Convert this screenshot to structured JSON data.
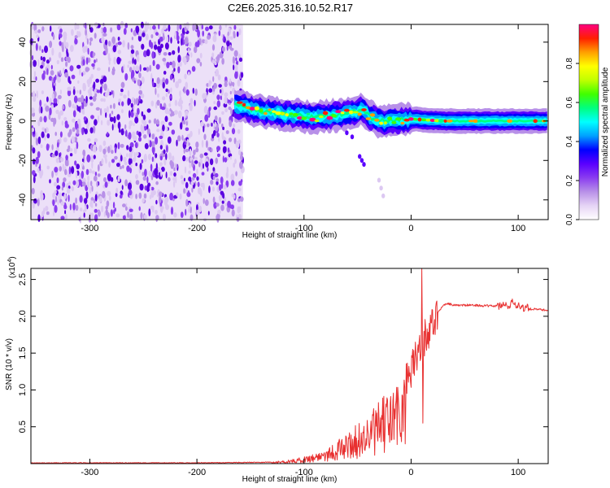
{
  "title": "C2E6.2025.316.10.52.R17",
  "chart_data": [
    {
      "type": "heatmap",
      "name": "spectrogram",
      "xlabel": "Height of straight line (km)",
      "ylabel": "Frequency (Hz)",
      "xlim": [
        -355,
        128
      ],
      "ylim": [
        -50,
        49
      ],
      "xticks": [
        -300,
        -200,
        -100,
        0,
        100
      ],
      "yticks": [
        -40,
        -20,
        0,
        20,
        40
      ],
      "noise_region_x": [
        -355,
        -157
      ],
      "signal_band_x": [
        -165,
        128
      ],
      "signal_center_freq": [
        {
          "x": -165,
          "y": 8
        },
        {
          "x": -150,
          "y": 6
        },
        {
          "x": -130,
          "y": 4
        },
        {
          "x": -110,
          "y": 3
        },
        {
          "x": -90,
          "y": 2
        },
        {
          "x": -70,
          "y": 3
        },
        {
          "x": -55,
          "y": 4
        },
        {
          "x": -45,
          "y": 6
        },
        {
          "x": -38,
          "y": 2
        },
        {
          "x": -30,
          "y": 0
        },
        {
          "x": -20,
          "y": 0
        },
        {
          "x": 0,
          "y": 1
        },
        {
          "x": 30,
          "y": 0
        },
        {
          "x": 128,
          "y": 0
        }
      ],
      "colorbar": {
        "label": "Normalized spectral amplitude",
        "range": [
          0,
          1
        ],
        "ticks": [
          "0.0",
          "0.2",
          "0.4",
          "0.6",
          "0.8"
        ],
        "tick_values": [
          0.0,
          0.2,
          0.4,
          0.6,
          0.8
        ],
        "colors": [
          "#ffffff",
          "#e6d4f5",
          "#b890e8",
          "#8a3cf0",
          "#5a00ff",
          "#0000ff",
          "#00a0ff",
          "#00ffff",
          "#00ff80",
          "#40ff00",
          "#c0ff00",
          "#ffff00",
          "#ffa000",
          "#ff2000",
          "#ff0080"
        ]
      }
    },
    {
      "type": "line",
      "name": "snr",
      "xlabel": "Height of straight line (km)",
      "ylabel": "SNR (10 * v/v)",
      "exponent_label": "(x10",
      "exponent_power": "4",
      "exponent_close": ")",
      "xlim": [
        -355,
        128
      ],
      "ylim": [
        0,
        2.65
      ],
      "xticks": [
        -300,
        -200,
        -100,
        0,
        100
      ],
      "yticks": [
        0.5,
        1.0,
        1.5,
        2.0,
        2.5
      ],
      "ytick_labels": [
        "0.5",
        "1.0",
        "1.5",
        "2.0",
        "2.5"
      ],
      "color": "#e83030",
      "series": [
        {
          "name": "SNR",
          "x": [
            -355,
            -200,
            -130,
            -110,
            -100,
            -90,
            -80,
            -70,
            -60,
            -50,
            -40,
            -30,
            -20,
            -10,
            0,
            5,
            10,
            15,
            20,
            25,
            30,
            35,
            40,
            50,
            60,
            70,
            80,
            90,
            95,
            100,
            105,
            110,
            120,
            128
          ],
          "y": [
            0.01,
            0.01,
            0.02,
            0.05,
            0.08,
            0.12,
            0.18,
            0.25,
            0.35,
            0.45,
            0.55,
            0.7,
            0.85,
            1.0,
            1.3,
            1.5,
            1.7,
            1.8,
            1.95,
            2.05,
            2.15,
            2.17,
            2.15,
            2.15,
            2.15,
            2.14,
            2.14,
            2.15,
            2.18,
            2.15,
            2.12,
            2.1,
            2.09,
            2.08
          ]
        }
      ]
    }
  ]
}
